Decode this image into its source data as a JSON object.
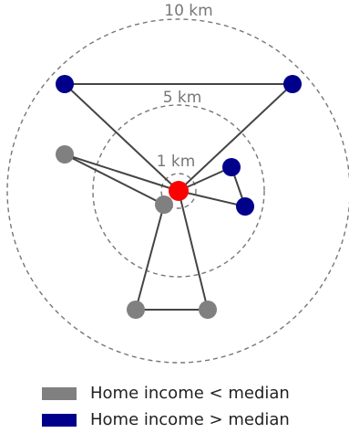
{
  "rings": [
    {
      "id": "10km",
      "label": "10 km",
      "radius_km": 10
    },
    {
      "id": "5km",
      "label": "5 km",
      "radius_km": 5
    },
    {
      "id": "1km",
      "label": "1 km",
      "radius_km": 1
    }
  ],
  "colors": {
    "low_income": "#808080",
    "high_income": "#00008b",
    "center": "#ff0000"
  },
  "legend": [
    {
      "label": "Home income < median",
      "color": "#808080"
    },
    {
      "label": "Home income > median",
      "color": "#00008b"
    }
  ]
}
